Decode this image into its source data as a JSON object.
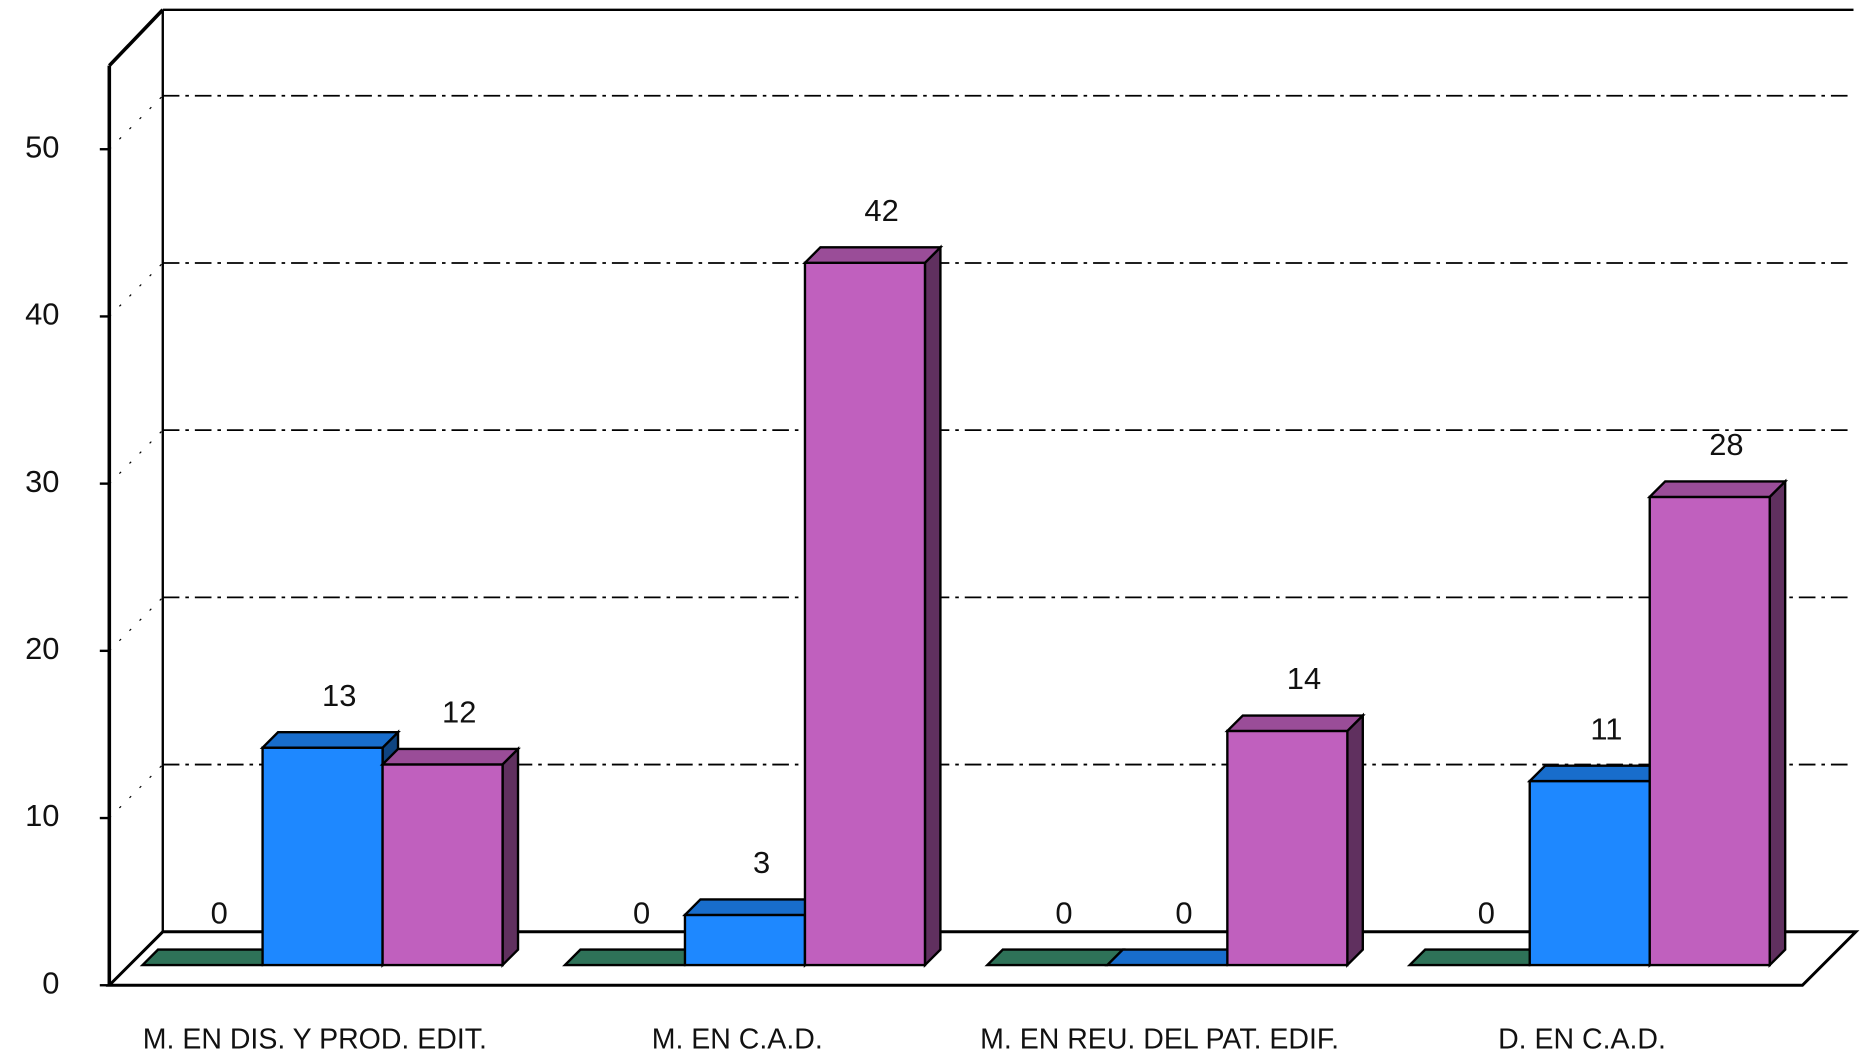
{
  "chart_data": {
    "type": "bar3d",
    "categories": [
      "M. EN DIS. Y PROD. EDIT.",
      "M. EN C.A.D.",
      "M. EN REU. DEL PAT. EDIF.",
      "D. EN C.A.D."
    ],
    "series": [
      {
        "color": "#3a8f6e",
        "values": [
          0,
          0,
          0,
          0
        ]
      },
      {
        "color": "#1e88ff",
        "values": [
          13,
          3,
          0,
          11
        ]
      },
      {
        "color": "#c060be",
        "values": [
          12,
          42,
          14,
          28
        ]
      }
    ],
    "ylim": [
      0,
      55
    ],
    "yticks": [
      0,
      10,
      20,
      30,
      40,
      50
    ],
    "grid": true
  }
}
